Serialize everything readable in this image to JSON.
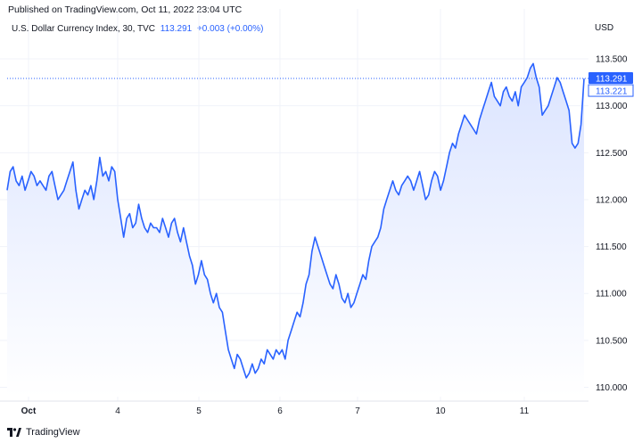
{
  "header": {
    "published": "Published on TradingView.com, Oct 11, 2022 23:04 UTC",
    "symbol": "U.S. Dollar Currency Index, 30, TVC",
    "last": "113.291",
    "change": "+0.003 (+0.00%)",
    "currency": "USD"
  },
  "footer": {
    "brand": "TradingView",
    "logo_icon": "tradingview-logo-icon"
  },
  "colors": {
    "line": "#2962ff",
    "fill_top": "#dbe4ff",
    "fill_bottom": "#ffffff",
    "grid": "#f0f3fa",
    "price_line": "#2962ff"
  },
  "chart_data": {
    "type": "area",
    "title": "",
    "xlabel": "",
    "ylabel": "USD",
    "x_tick_labels": [
      "Oct",
      "4",
      "5",
      "6",
      "7",
      "10",
      "11"
    ],
    "y_tick_labels": [
      "110.000",
      "110.500",
      "111.000",
      "111.500",
      "112.000",
      "112.500",
      "113.000",
      "113.500"
    ],
    "ylim": [
      109.9,
      113.7
    ],
    "grid": true,
    "price_labels": {
      "last": "113.291",
      "previous_close": "113.221"
    },
    "series": [
      {
        "values": [
          112.1,
          112.3,
          112.35,
          112.2,
          112.15,
          112.25,
          112.1,
          112.2,
          112.3,
          112.25,
          112.15,
          112.2,
          112.15,
          112.1,
          112.25,
          112.3,
          112.15,
          112.0,
          112.05,
          112.1,
          112.2,
          112.3,
          112.4,
          112.1,
          111.9,
          112.0,
          112.1,
          112.05,
          112.15,
          112.0,
          112.2,
          112.45,
          112.25,
          112.3,
          112.2,
          112.35,
          112.3,
          112.0,
          111.8,
          111.6,
          111.8,
          111.85,
          111.7,
          111.75,
          111.95,
          111.8,
          111.7,
          111.65,
          111.75,
          111.7,
          111.7,
          111.65,
          111.8,
          111.7,
          111.6,
          111.75,
          111.8,
          111.65,
          111.55,
          111.7,
          111.55,
          111.4,
          111.3,
          111.1,
          111.2,
          111.35,
          111.2,
          111.15,
          111.0,
          110.9,
          111.0,
          110.85,
          110.8,
          110.6,
          110.4,
          110.3,
          110.2,
          110.35,
          110.3,
          110.2,
          110.1,
          110.15,
          110.25,
          110.15,
          110.2,
          110.3,
          110.25,
          110.4,
          110.35,
          110.3,
          110.4,
          110.35,
          110.4,
          110.3,
          110.5,
          110.6,
          110.7,
          110.8,
          110.75,
          110.9,
          111.1,
          111.2,
          111.45,
          111.6,
          111.5,
          111.4,
          111.3,
          111.2,
          111.1,
          111.05,
          111.2,
          111.1,
          110.95,
          110.9,
          111.0,
          110.85,
          110.9,
          111.0,
          111.1,
          111.2,
          111.15,
          111.35,
          111.5,
          111.55,
          111.6,
          111.7,
          111.9,
          112.0,
          112.1,
          112.2,
          112.1,
          112.05,
          112.15,
          112.2,
          112.25,
          112.2,
          112.1,
          112.2,
          112.3,
          112.15,
          112.0,
          112.05,
          112.2,
          112.3,
          112.25,
          112.1,
          112.2,
          112.35,
          112.5,
          112.6,
          112.55,
          112.7,
          112.8,
          112.9,
          112.85,
          112.8,
          112.75,
          112.7,
          112.85,
          112.95,
          113.05,
          113.15,
          113.25,
          113.1,
          113.05,
          113.0,
          113.15,
          113.2,
          113.1,
          113.05,
          113.15,
          113.0,
          113.2,
          113.25,
          113.3,
          113.4,
          113.45,
          113.3,
          113.2,
          112.9,
          112.95,
          113.0,
          113.1,
          113.2,
          113.3,
          113.25,
          113.15,
          113.05,
          112.95,
          112.6,
          112.55,
          112.6,
          112.8,
          113.29
        ]
      }
    ]
  }
}
